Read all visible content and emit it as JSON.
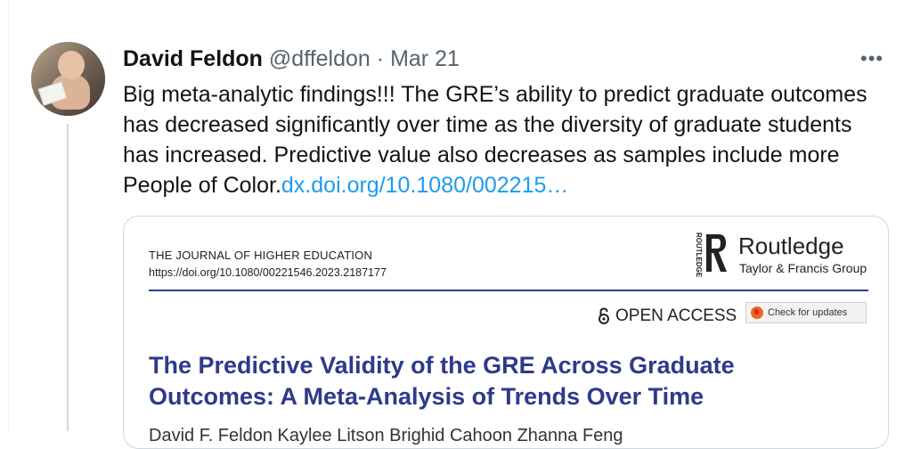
{
  "tweet": {
    "author_name": "David Feldon",
    "handle": "@dffeldon",
    "separator": "·",
    "date": "Mar 21",
    "more_label": "•••",
    "text": "Big meta-analytic findings!!! The GRE’s ability to predict graduate outcomes has decreased significantly over time as the diversity of graduate students has increased. Predictive value also decreases as samples include more People of Color.",
    "link_text": "dx.doi.org/10.1080/002215…"
  },
  "card": {
    "journal_name": "THE JOURNAL OF HIGHER EDUCATION",
    "journal_doi": "https://doi.org/10.1080/00221546.2023.2187177",
    "publisher_name": "Routledge",
    "publisher_sub": "Taylor & Francis Group",
    "publisher_vertical": "ROUTLEDGE",
    "open_access": "OPEN ACCESS",
    "check_updates": "Check for updates",
    "title": "The Predictive Validity of the GRE Across Graduate Outcomes: A Meta-Analysis of Trends Over Time",
    "authors_partial": "David F. Feldon    Kaylee Litson    Brighid Cahoon    Zhanna Feng"
  },
  "colors": {
    "link": "#1d9bf0",
    "title_blue": "#2d3a8c",
    "muted": "#536471",
    "rule": "#2c3e8f"
  }
}
